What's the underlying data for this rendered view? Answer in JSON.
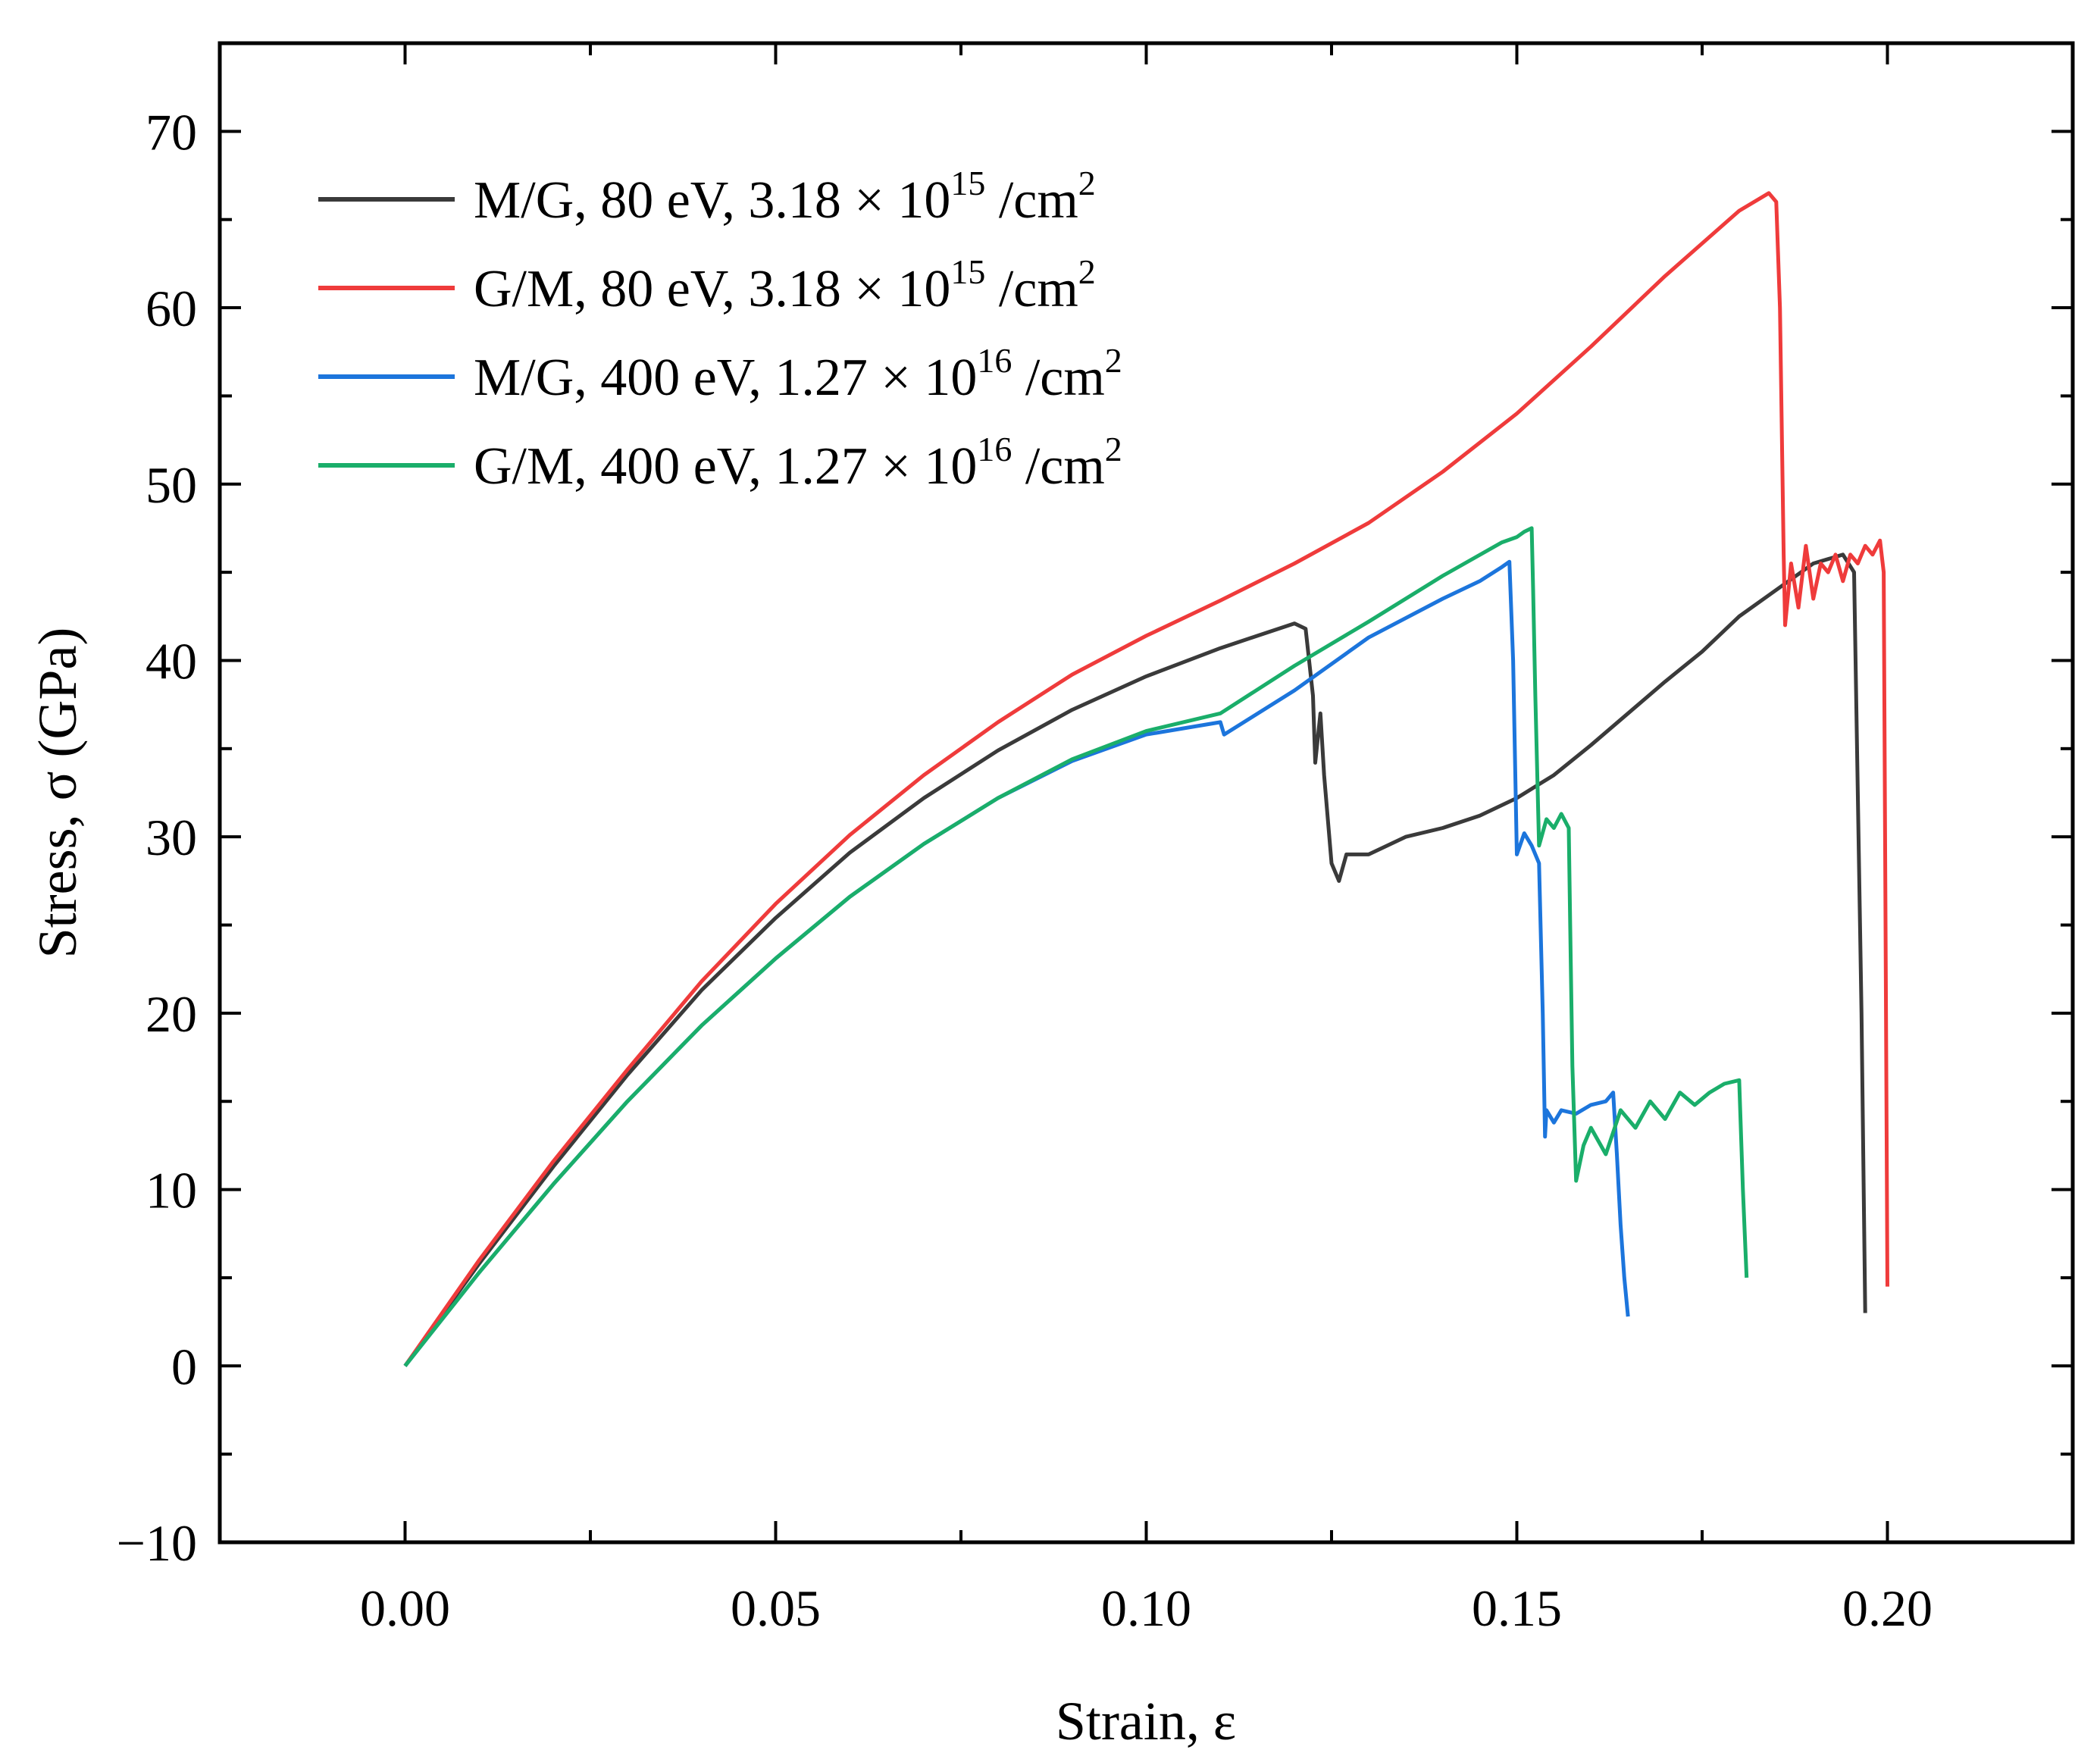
{
  "chart_data": {
    "type": "line",
    "title": "",
    "xlabel": "Strain, ε",
    "ylabel": "Stress, σ (GPa)",
    "xlim": [
      -0.025,
      0.225
    ],
    "ylim": [
      -10,
      75
    ],
    "xticks": [
      0.0,
      0.05,
      0.1,
      0.15,
      0.2
    ],
    "xtick_labels": [
      "0.00",
      "0.05",
      "0.10",
      "0.15",
      "0.20"
    ],
    "yticks": [
      -10,
      0,
      10,
      20,
      30,
      40,
      50,
      60,
      70
    ],
    "ytick_labels": [
      "−10",
      "0",
      "10",
      "20",
      "30",
      "40",
      "50",
      "60",
      "70"
    ],
    "grid": false,
    "legend_position": "top-left",
    "series": [
      {
        "name": "M/G, 80 eV, 3.18 × 10^15 /cm^2",
        "legend_parts": {
          "text": "M/G, 80 eV, 3.18 × 10",
          "exp1": "15",
          "unit": " /cm",
          "exp2": "2"
        },
        "color": "#3a3a3a",
        "x": [
          0.0,
          0.01,
          0.02,
          0.03,
          0.04,
          0.05,
          0.06,
          0.07,
          0.08,
          0.09,
          0.1,
          0.11,
          0.115,
          0.12,
          0.1215,
          0.1225,
          0.1228,
          0.1235,
          0.124,
          0.1245,
          0.125,
          0.126,
          0.127,
          0.13,
          0.135,
          0.14,
          0.145,
          0.15,
          0.155,
          0.16,
          0.165,
          0.17,
          0.175,
          0.18,
          0.185,
          0.19,
          0.194,
          0.1955,
          0.1965,
          0.197
        ],
        "y": [
          0.0,
          5.8,
          11.3,
          16.5,
          21.3,
          25.4,
          29.1,
          32.2,
          34.9,
          37.2,
          39.1,
          40.7,
          41.4,
          42.1,
          41.8,
          38.0,
          34.2,
          37.0,
          33.5,
          31.0,
          28.5,
          27.5,
          29.0,
          29.0,
          30.0,
          30.5,
          31.2,
          32.2,
          33.5,
          35.2,
          37.0,
          38.8,
          40.5,
          42.5,
          44.0,
          45.5,
          46.0,
          45.0,
          20.0,
          3.0
        ]
      },
      {
        "name": "G/M, 80 eV, 3.18 × 10^15 /cm^2",
        "legend_parts": {
          "text": "G/M, 80 eV, 3.18 × 10",
          "exp1": "15",
          "unit": " /cm",
          "exp2": "2"
        },
        "color": "#ef3b3b",
        "x": [
          0.0,
          0.01,
          0.02,
          0.03,
          0.04,
          0.05,
          0.06,
          0.07,
          0.08,
          0.09,
          0.1,
          0.11,
          0.12,
          0.13,
          0.14,
          0.15,
          0.16,
          0.17,
          0.18,
          0.184,
          0.185,
          0.1855,
          0.186,
          0.1862,
          0.187,
          0.188,
          0.189,
          0.19,
          0.191,
          0.192,
          0.193,
          0.194,
          0.195,
          0.196,
          0.197,
          0.198,
          0.199,
          0.1995,
          0.2
        ],
        "y": [
          0.0,
          6.0,
          11.6,
          16.8,
          21.8,
          26.2,
          30.1,
          33.5,
          36.5,
          39.2,
          41.4,
          43.4,
          45.5,
          47.8,
          50.7,
          54.0,
          57.8,
          61.8,
          65.5,
          66.5,
          66.0,
          60.0,
          46.0,
          42.0,
          45.5,
          43.0,
          46.5,
          43.5,
          45.5,
          45.0,
          46.0,
          44.5,
          46.0,
          45.5,
          46.5,
          46.0,
          46.8,
          45.0,
          4.5
        ]
      },
      {
        "name": "M/G, 400 eV, 1.27 × 10^16 /cm^2",
        "legend_parts": {
          "text": "M/G, 400 eV, 1.27 × 10",
          "exp1": "16",
          "unit": " /cm",
          "exp2": "2"
        },
        "color": "#1c75dc",
        "x": [
          0.0,
          0.01,
          0.02,
          0.03,
          0.04,
          0.05,
          0.06,
          0.07,
          0.08,
          0.09,
          0.1,
          0.11,
          0.1105,
          0.12,
          0.13,
          0.14,
          0.145,
          0.148,
          0.149,
          0.1495,
          0.15,
          0.151,
          0.152,
          0.153,
          0.1535,
          0.1538,
          0.154,
          0.155,
          0.156,
          0.158,
          0.16,
          0.162,
          0.163,
          0.1635,
          0.164,
          0.1645,
          0.165
        ],
        "y": [
          0.0,
          5.3,
          10.3,
          15.0,
          19.3,
          23.1,
          26.6,
          29.6,
          32.2,
          34.3,
          35.8,
          36.5,
          35.8,
          38.3,
          41.3,
          43.5,
          44.5,
          45.3,
          45.6,
          40.0,
          29.0,
          30.2,
          29.5,
          28.5,
          20.0,
          13.0,
          14.5,
          13.8,
          14.5,
          14.3,
          14.8,
          15.0,
          15.5,
          12.0,
          8.0,
          5.0,
          2.8
        ]
      },
      {
        "name": "G/M, 400 eV, 1.27 × 10^16 /cm^2",
        "legend_parts": {
          "text": "G/M, 400 eV, 1.27 × 10",
          "exp1": "16",
          "unit": " /cm",
          "exp2": "2"
        },
        "color": "#1aae6a",
        "x": [
          0.0,
          0.01,
          0.02,
          0.03,
          0.04,
          0.05,
          0.06,
          0.07,
          0.08,
          0.09,
          0.1,
          0.11,
          0.12,
          0.13,
          0.14,
          0.148,
          0.15,
          0.151,
          0.152,
          0.1522,
          0.1525,
          0.153,
          0.154,
          0.155,
          0.156,
          0.157,
          0.1572,
          0.1575,
          0.158,
          0.159,
          0.16,
          0.162,
          0.164,
          0.166,
          0.168,
          0.17,
          0.172,
          0.174,
          0.176,
          0.178,
          0.18,
          0.1805,
          0.181
        ],
        "y": [
          0.0,
          5.3,
          10.3,
          15.0,
          19.3,
          23.1,
          26.6,
          29.6,
          32.2,
          34.4,
          36.0,
          37.0,
          39.7,
          42.2,
          44.8,
          46.7,
          47.0,
          47.3,
          47.5,
          44.0,
          38.0,
          29.5,
          31.0,
          30.5,
          31.3,
          30.5,
          25.0,
          17.0,
          10.5,
          12.5,
          13.5,
          12.0,
          14.5,
          13.5,
          15.0,
          14.0,
          15.5,
          14.8,
          15.5,
          16.0,
          16.2,
          10.0,
          5.0
        ]
      }
    ]
  }
}
